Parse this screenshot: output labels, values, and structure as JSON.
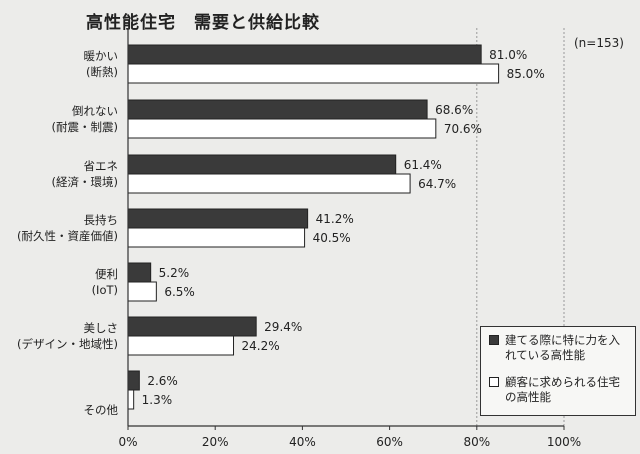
{
  "header": {
    "title": "高性能住宅　需要と供給比較",
    "sample": "(n=153)"
  },
  "legend": {
    "builder_label": "建てる際に特に力を入れている高性能",
    "customer_label": "顧客に求められる住宅の高性能"
  },
  "colors": {
    "builder": "#3a3a3a",
    "customer": "#ffffff",
    "axis": "#333333",
    "grid": "#999999"
  },
  "chart_data": {
    "type": "bar",
    "orientation": "horizontal",
    "title": "高性能住宅　需要と供給比較",
    "categories": [
      [
        "暖かい",
        "(断熱)"
      ],
      [
        "倒れない",
        "(耐震・制震)"
      ],
      [
        "省エネ",
        "(経済・環境)"
      ],
      [
        "長持ち",
        "(耐久性・資産価値)"
      ],
      [
        "便利",
        "(IoT)"
      ],
      [
        "美しさ",
        "(デザイン・地域性)"
      ],
      [
        "その他"
      ]
    ],
    "series": [
      {
        "name": "建てる際に特に力を入れている高性能",
        "values": [
          81.0,
          68.6,
          61.4,
          41.2,
          5.2,
          29.4,
          2.6
        ]
      },
      {
        "name": "顧客に求められる住宅の高性能",
        "values": [
          85.0,
          70.6,
          64.7,
          40.5,
          6.5,
          24.2,
          1.3
        ]
      }
    ],
    "value_labels": [
      [
        "81.0%",
        "68.6%",
        "61.4%",
        "41.2%",
        "5.2%",
        "29.4%",
        "2.6%"
      ],
      [
        "85.0%",
        "70.6%",
        "64.7%",
        "40.5%",
        "6.5%",
        "24.2%",
        "1.3%"
      ]
    ],
    "xlim": [
      0,
      100
    ],
    "xticks": [
      0,
      20,
      40,
      60,
      80,
      100
    ],
    "xtick_labels": [
      "0%",
      "20%",
      "40%",
      "60%",
      "80%",
      "100%"
    ],
    "grid": "vertical dashed at 80% and 100%",
    "legend_position": "bottom-right"
  }
}
